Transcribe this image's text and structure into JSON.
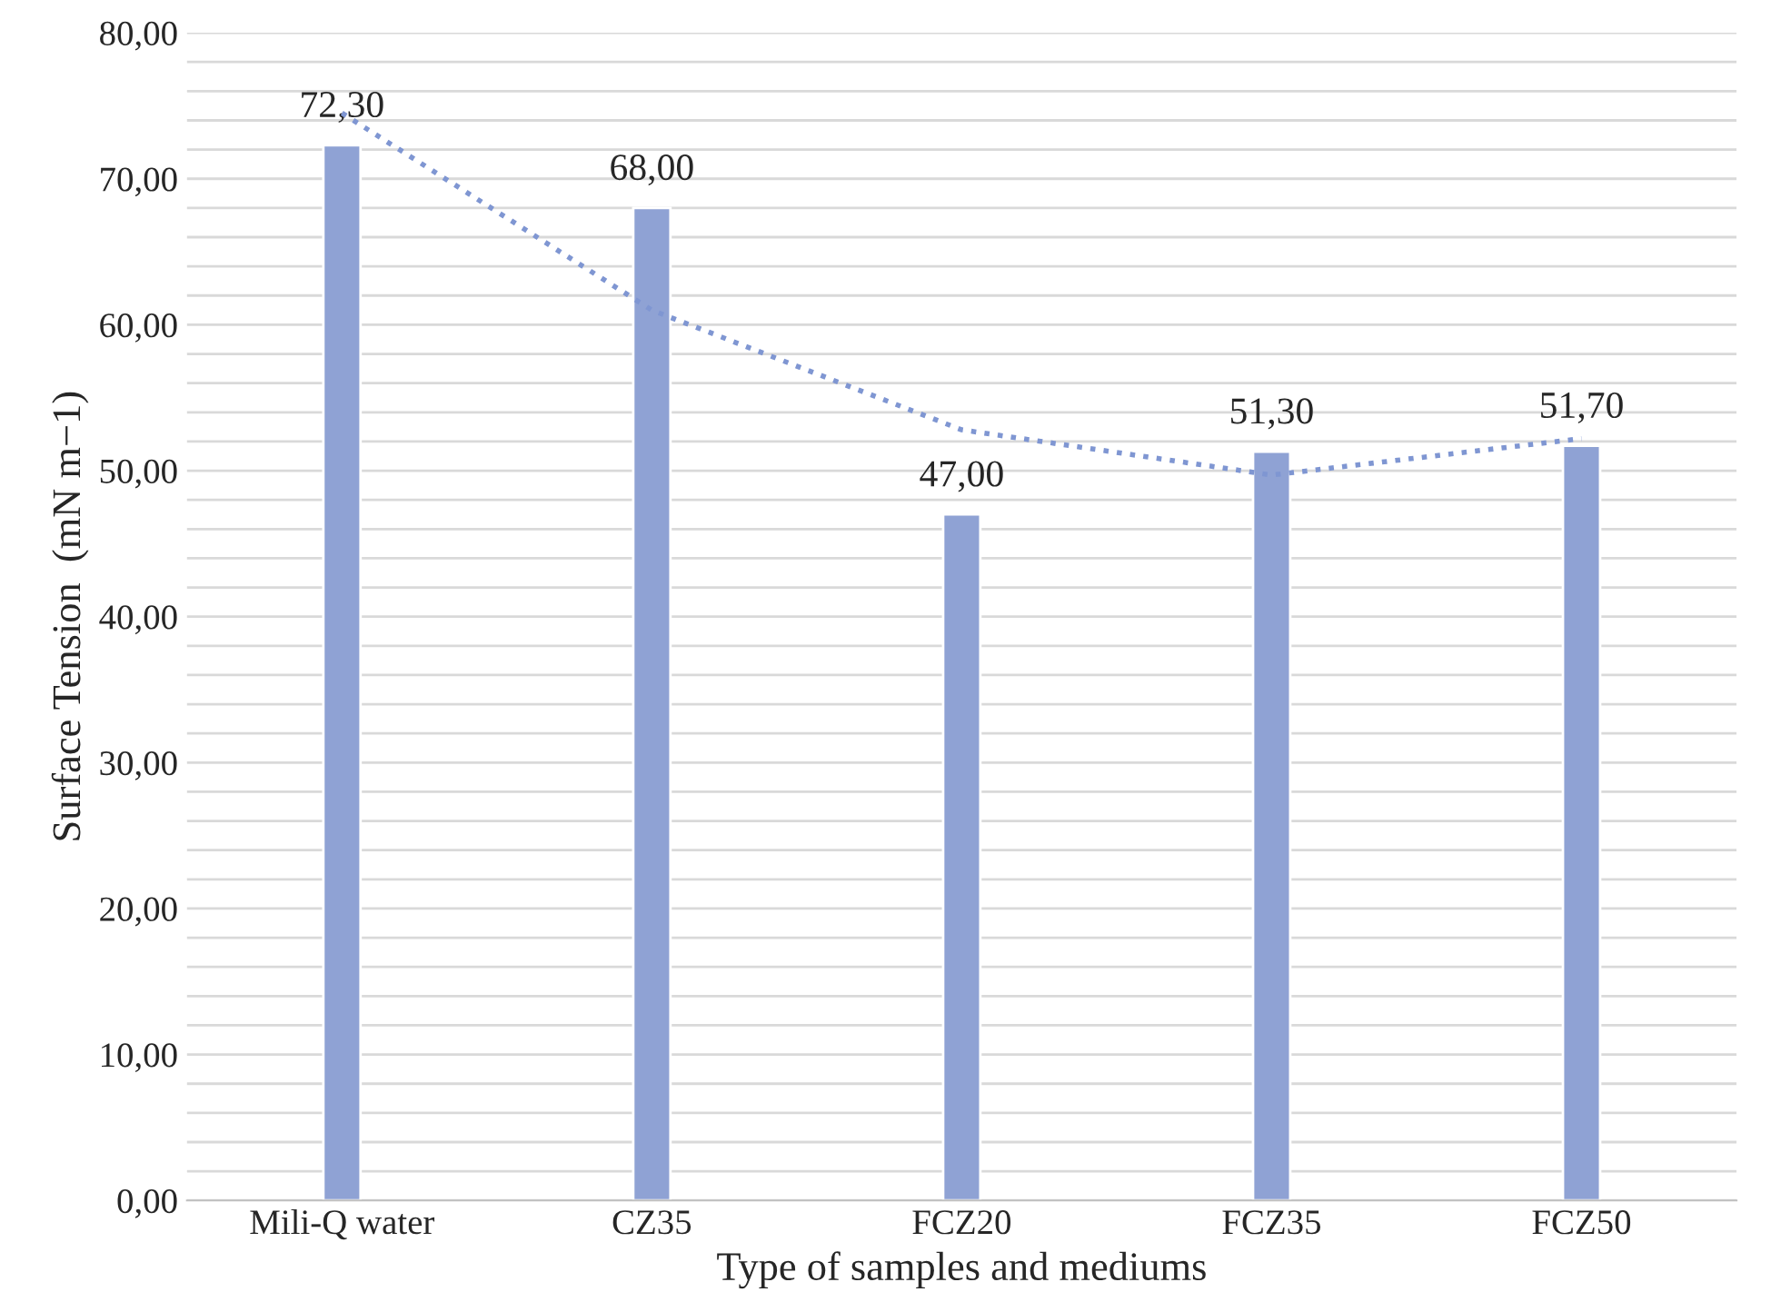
{
  "chart_data": {
    "type": "bar",
    "xlabel": "Type of samples and mediums",
    "ylabel": "Surface Tension  (mN m−1)",
    "categories": [
      "Mili-Q water",
      "CZ35",
      "FCZ20",
      "FCZ35",
      "FCZ50"
    ],
    "series": [
      {
        "color": "#8fa2d4",
        "values": [
          72.3,
          68.0,
          47.0,
          51.3,
          51.7
        ],
        "value_labels": [
          "72,30",
          "68,00",
          "47,00",
          "51,30",
          "51,70"
        ]
      },
      {
        "type": "line",
        "color": "#7f96d2",
        "line_style": "dotted",
        "values": [
          74.5,
          61.0,
          52.8,
          49.7,
          52.2
        ]
      }
    ],
    "ylim": [
      0,
      80
    ],
    "yticks": [
      {
        "value": 0,
        "label": "0,00"
      },
      {
        "value": 2,
        "label": null
      },
      {
        "value": 4,
        "label": null
      },
      {
        "value": 6,
        "label": null
      },
      {
        "value": 8,
        "label": null
      },
      {
        "value": 10,
        "label": "10,00"
      },
      {
        "value": 12,
        "label": null
      },
      {
        "value": 14,
        "label": null
      },
      {
        "value": 16,
        "label": null
      },
      {
        "value": 18,
        "label": null
      },
      {
        "value": 20,
        "label": "20,00"
      },
      {
        "value": 22,
        "label": null
      },
      {
        "value": 24,
        "label": null
      },
      {
        "value": 26,
        "label": null
      },
      {
        "value": 28,
        "label": null
      },
      {
        "value": 30,
        "label": "30,00"
      },
      {
        "value": 32,
        "label": null
      },
      {
        "value": 34,
        "label": null
      },
      {
        "value": 36,
        "label": null
      },
      {
        "value": 38,
        "label": null
      },
      {
        "value": 40,
        "label": "40,00"
      },
      {
        "value": 42,
        "label": null
      },
      {
        "value": 44,
        "label": null
      },
      {
        "value": 46,
        "label": null
      },
      {
        "value": 48,
        "label": null
      },
      {
        "value": 50,
        "label": "50,00"
      },
      {
        "value": 52,
        "label": null
      },
      {
        "value": 54,
        "label": null
      },
      {
        "value": 56,
        "label": null
      },
      {
        "value": 58,
        "label": null
      },
      {
        "value": 60,
        "label": "60,00"
      },
      {
        "value": 62,
        "label": null
      },
      {
        "value": 64,
        "label": null
      },
      {
        "value": 66,
        "label": null
      },
      {
        "value": 68,
        "label": null
      },
      {
        "value": 70,
        "label": "70,00"
      },
      {
        "value": 72,
        "label": null
      },
      {
        "value": 74,
        "label": null
      },
      {
        "value": 76,
        "label": null
      },
      {
        "value": 78,
        "label": null
      },
      {
        "value": 80,
        "label": "80,00"
      }
    ],
    "grid": "y",
    "legend": false
  }
}
